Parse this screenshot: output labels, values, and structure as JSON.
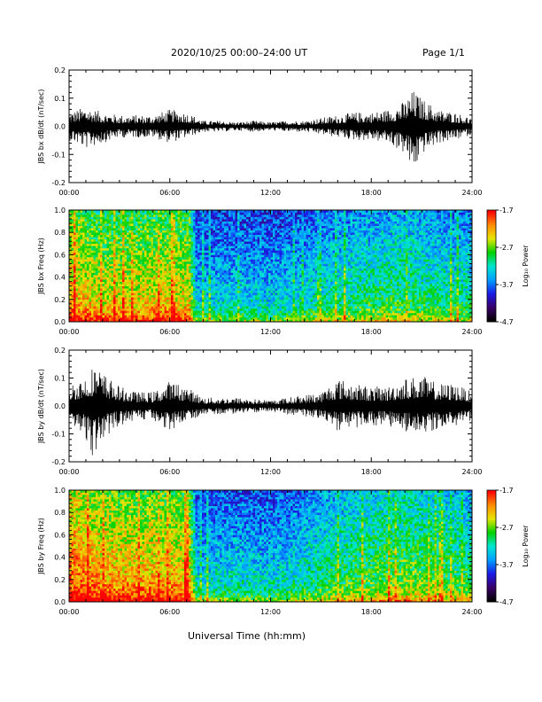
{
  "header": {
    "title": "2020/10/25  00:00–24:00 UT",
    "page": "Page 1/1"
  },
  "xlabel": "Universal Time (hh:mm)",
  "colors": {
    "trace": "#000000",
    "colormap": [
      "#000000",
      "#3a0068",
      "#1a1ae6",
      "#00a0ff",
      "#00e6d2",
      "#00d200",
      "#e6e600",
      "#ff8c00",
      "#ff0000"
    ]
  },
  "chart_data": [
    {
      "type": "line",
      "ylabel": "JBS bx dB/dt (nT/sec)",
      "xlim": [
        0,
        24
      ],
      "ylim": [
        -0.2,
        0.2
      ],
      "xticks": [
        "00:00",
        "06:00",
        "12:00",
        "18:00",
        "24:00"
      ],
      "yticks": [
        "-0.2",
        "-0.1",
        "0.0",
        "0.1",
        "0.2"
      ],
      "envelope": {
        "x": [
          0,
          1,
          2,
          3,
          4,
          5,
          6,
          7,
          8,
          9,
          10,
          11,
          12,
          13,
          14,
          15,
          16,
          17,
          18,
          19,
          20,
          20.5,
          21,
          22,
          23,
          24
        ],
        "upper": [
          0.05,
          0.07,
          0.05,
          0.04,
          0.04,
          0.04,
          0.06,
          0.05,
          0.02,
          0.02,
          0.015,
          0.02,
          0.015,
          0.02,
          0.02,
          0.03,
          0.04,
          0.05,
          0.05,
          0.06,
          0.09,
          0.13,
          0.1,
          0.06,
          0.05,
          0.03
        ],
        "lower": [
          -0.05,
          -0.08,
          -0.06,
          -0.04,
          -0.04,
          -0.04,
          -0.06,
          -0.04,
          -0.02,
          -0.02,
          -0.015,
          -0.02,
          -0.015,
          -0.02,
          -0.02,
          -0.03,
          -0.04,
          -0.05,
          -0.05,
          -0.06,
          -0.1,
          -0.17,
          -0.1,
          -0.06,
          -0.05,
          -0.03
        ]
      }
    },
    {
      "type": "heatmap",
      "ylabel": "JBS bx Freq (Hz)",
      "xlim": [
        0,
        24
      ],
      "ylim": [
        0,
        1
      ],
      "xticks": [
        "00:00",
        "06:00",
        "12:00",
        "18:00",
        "24:00"
      ],
      "yticks": [
        "0.0",
        "0.2",
        "0.4",
        "0.6",
        "0.8",
        "1.0"
      ],
      "colorbar": {
        "label": "Log₁₀ Power",
        "ticks": [
          "-1.7",
          "-2.7",
          "-3.7",
          "-4.7"
        ],
        "range": [
          -4.7,
          -1.7
        ]
      },
      "activity": {
        "t": [
          0,
          2,
          4,
          6,
          7.2,
          7.6,
          10,
          12,
          14,
          16,
          18,
          20,
          22,
          24
        ],
        "level": [
          0.88,
          0.78,
          0.8,
          0.82,
          0.8,
          0.48,
          0.5,
          0.48,
          0.52,
          0.56,
          0.6,
          0.62,
          0.58,
          0.56
        ]
      }
    },
    {
      "type": "line",
      "ylabel": "JBS by dB/dt (nT/sec)",
      "xlim": [
        0,
        24
      ],
      "ylim": [
        -0.2,
        0.2
      ],
      "xticks": [
        "00:00",
        "06:00",
        "12:00",
        "18:00",
        "24:00"
      ],
      "yticks": [
        "-0.2",
        "-0.1",
        "0.0",
        "0.1",
        "0.2"
      ],
      "envelope": {
        "x": [
          0,
          1,
          1.5,
          2,
          3,
          4,
          5,
          6,
          7,
          8,
          9,
          10,
          11,
          12,
          13,
          14,
          15,
          16,
          17,
          18,
          19,
          20,
          21,
          22,
          23,
          24
        ],
        "upper": [
          0.08,
          0.11,
          0.15,
          0.12,
          0.07,
          0.05,
          0.05,
          0.09,
          0.07,
          0.03,
          0.03,
          0.03,
          0.025,
          0.02,
          0.03,
          0.04,
          0.05,
          0.1,
          0.08,
          0.07,
          0.07,
          0.1,
          0.11,
          0.08,
          0.08,
          0.05
        ],
        "lower": [
          -0.08,
          -0.12,
          -0.2,
          -0.12,
          -0.07,
          -0.05,
          -0.05,
          -0.09,
          -0.06,
          -0.03,
          -0.03,
          -0.03,
          -0.025,
          -0.02,
          -0.03,
          -0.04,
          -0.05,
          -0.09,
          -0.08,
          -0.07,
          -0.07,
          -0.1,
          -0.11,
          -0.08,
          -0.08,
          -0.05
        ]
      }
    },
    {
      "type": "heatmap",
      "ylabel": "JBS by Freq (Hz)",
      "xlim": [
        0,
        24
      ],
      "ylim": [
        0,
        1
      ],
      "xticks": [
        "00:00",
        "06:00",
        "12:00",
        "18:00",
        "24:00"
      ],
      "yticks": [
        "0.0",
        "0.2",
        "0.4",
        "0.6",
        "0.8",
        "1.0"
      ],
      "colorbar": {
        "label": "Log₁₀ Power",
        "ticks": [
          "-1.7",
          "-2.7",
          "-3.7",
          "-4.7"
        ],
        "range": [
          -4.7,
          -1.7
        ]
      },
      "activity": {
        "t": [
          0,
          2,
          4,
          6,
          7.2,
          7.6,
          10,
          12,
          14,
          16,
          18,
          20,
          22,
          24
        ],
        "level": [
          0.95,
          0.88,
          0.86,
          0.86,
          0.84,
          0.5,
          0.52,
          0.5,
          0.55,
          0.62,
          0.66,
          0.7,
          0.66,
          0.62
        ]
      }
    }
  ]
}
